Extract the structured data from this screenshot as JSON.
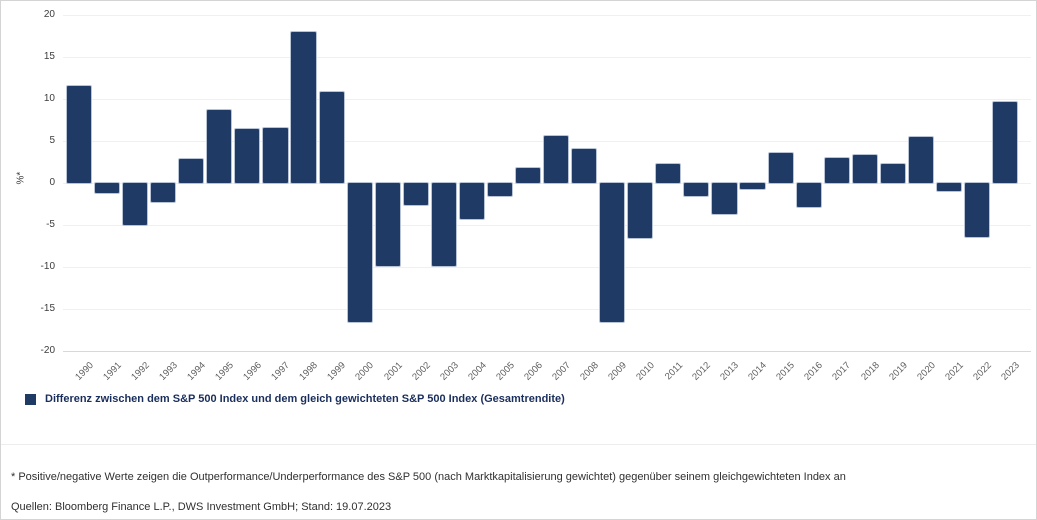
{
  "chart_data": {
    "type": "bar",
    "title": "",
    "xlabel": "",
    "ylabel": "%*",
    "ylim": [
      -20,
      20
    ],
    "yticks": [
      20,
      15,
      10,
      5,
      0,
      -5,
      -10,
      -15,
      -20
    ],
    "grid": true,
    "bar_color": "#1f3a64",
    "bar_edge_color": "#b8c3d6",
    "legend_position": "bottom-left",
    "categories": [
      "1990",
      "1991",
      "1992",
      "1993",
      "1994",
      "1995",
      "1996",
      "1997",
      "1998",
      "1999",
      "2000",
      "2001",
      "2002",
      "2003",
      "2004",
      "2005",
      "2006",
      "2007",
      "2008",
      "2009",
      "2010",
      "2011",
      "2012",
      "2013",
      "2014",
      "2015",
      "2016",
      "2017",
      "2018",
      "2019",
      "2020",
      "2021",
      "2022",
      "2023"
    ],
    "values": [
      11.5,
      -1.2,
      -5.0,
      -2.3,
      2.9,
      8.7,
      6.4,
      6.6,
      18.0,
      10.8,
      -16.6,
      -9.9,
      -2.6,
      -9.9,
      -4.3,
      -1.5,
      1.8,
      5.6,
      4.0,
      -16.6,
      -6.6,
      2.3,
      -1.5,
      -3.7,
      -0.7,
      3.6,
      -2.8,
      3.0,
      3.3,
      2.3,
      5.5,
      -1.0,
      -6.4,
      9.7
    ],
    "legend": [
      {
        "label": "Differenz zwischen dem S&P 500 Index und dem gleich gewichteten S&P 500 Index (Gesamtrendite)",
        "color": "#1f3a64"
      }
    ]
  },
  "footnote": "* Positive/negative Werte zeigen die Outperformance/Underperformance des S&P 500 (nach Marktkapitalisierung gewichtet) gegenüber seinem gleichgewichteten Index an",
  "sources": "Quellen: Bloomberg Finance L.P., DWS Investment GmbH; Stand: 19.07.2023"
}
